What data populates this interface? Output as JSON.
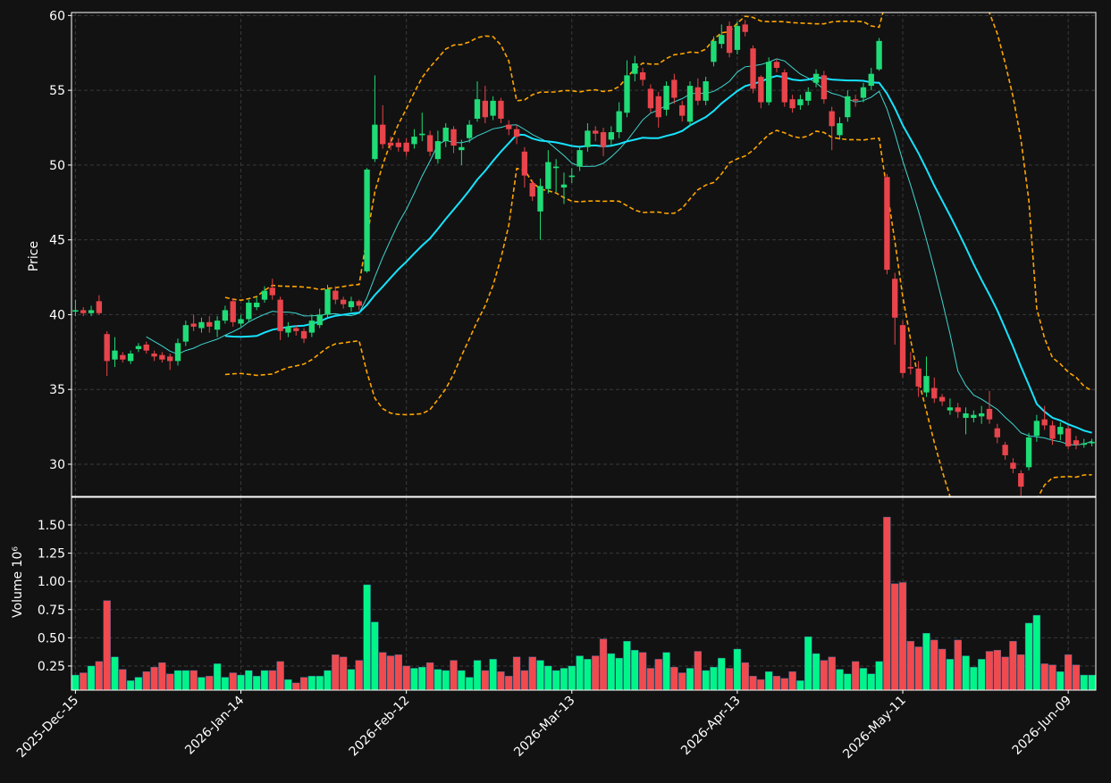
{
  "chart_data": {
    "type": "candlestick",
    "ylabel": "Price",
    "xlim": [
      -0.5,
      129.5
    ],
    "xticks": [
      {
        "value": 0,
        "label": "2025-Dec-15"
      },
      {
        "value": 21,
        "label": "2026-Jan-14"
      },
      {
        "value": 42,
        "label": "2026-Feb-12"
      },
      {
        "value": 63,
        "label": "2026-Mar-13"
      },
      {
        "value": 84,
        "label": "2026-Apr-13"
      },
      {
        "value": 105,
        "label": "2026-May-11"
      },
      {
        "value": 126,
        "label": "2026-Jun-09"
      }
    ],
    "ylim": [
      27.85,
      60.2
    ],
    "yticks": [
      30,
      35,
      40,
      45,
      50,
      55,
      60
    ],
    "grid": true,
    "up_color": "#1fdc77",
    "down_color": "#e8444b",
    "open": [
      40.2,
      40.3,
      40.1,
      40.9,
      38.7,
      37.0,
      37.3,
      36.9,
      37.7,
      38.0,
      37.4,
      37.3,
      37.2,
      36.9,
      38.2,
      39.4,
      39.1,
      39.5,
      39.0,
      39.6,
      40.9,
      39.4,
      39.7,
      40.5,
      41.0,
      41.8,
      41.0,
      38.8,
      39.1,
      38.9,
      38.8,
      39.3,
      40.0,
      41.6,
      41.0,
      40.5,
      40.9,
      42.9,
      50.4,
      52.7,
      51.5,
      51.5,
      51.5,
      51.4,
      52.0,
      52.0,
      50.4,
      51.6,
      52.4,
      51.0,
      51.8,
      53.1,
      54.3,
      53.3,
      54.3,
      52.7,
      52.4,
      50.9,
      48.8,
      46.9,
      48.4,
      49.8,
      48.5,
      49.2,
      49.9,
      51.2,
      52.3,
      52.2,
      51.7,
      52.2,
      53.5,
      56.1,
      56.2,
      55.1,
      54.6,
      53.7,
      55.7,
      54.0,
      52.9,
      55.2,
      54.3,
      56.9,
      58.1,
      59.3,
      57.7,
      59.4,
      57.8,
      55.9,
      54.2,
      56.9,
      56.2,
      54.4,
      54.0,
      54.3,
      55.5,
      56.0,
      53.6,
      52.0,
      53.2,
      54.4,
      54.5,
      55.3,
      56.4,
      49.2,
      42.4,
      39.3,
      36.5,
      36.4,
      34.8,
      35.1,
      34.5,
      33.6,
      33.8,
      33.1,
      33.1,
      33.2,
      33.7,
      32.4,
      31.3,
      30.1,
      29.4,
      29.8,
      31.9,
      33.0,
      32.6,
      32.0,
      32.4,
      31.6,
      31.3,
      31.4
    ],
    "high": [
      41.0,
      40.5,
      40.6,
      41.3,
      38.9,
      38.5,
      37.5,
      37.6,
      38.1,
      38.2,
      37.6,
      37.5,
      37.4,
      38.4,
      39.6,
      40.0,
      39.8,
      39.9,
      39.9,
      40.6,
      41.1,
      40.0,
      41.0,
      41.2,
      41.9,
      42.4,
      41.2,
      39.5,
      39.3,
      39.1,
      40.0,
      40.4,
      42.0,
      41.9,
      41.2,
      41.2,
      41.0,
      49.8,
      56.0,
      54.0,
      51.9,
      51.8,
      51.8,
      52.4,
      53.5,
      52.3,
      52.3,
      52.8,
      52.6,
      51.7,
      53.0,
      55.6,
      55.3,
      54.6,
      54.5,
      53.0,
      52.7,
      51.2,
      49.0,
      49.1,
      51.0,
      50.4,
      49.5,
      49.8,
      51.3,
      52.8,
      52.6,
      52.5,
      52.6,
      54.2,
      57.0,
      57.3,
      56.5,
      55.4,
      54.9,
      55.6,
      56.1,
      54.3,
      55.6,
      55.8,
      55.9,
      58.6,
      59.4,
      59.6,
      59.6,
      59.7,
      58.0,
      56.0,
      57.2,
      57.1,
      56.4,
      54.7,
      54.7,
      55.2,
      56.4,
      56.3,
      53.9,
      53.2,
      55.0,
      54.7,
      55.5,
      56.5,
      58.5,
      49.4,
      42.8,
      39.6,
      37.5,
      36.9,
      37.2,
      35.8,
      34.7,
      34.4,
      34.1,
      33.8,
      33.6,
      33.9,
      34.9,
      32.7,
      31.5,
      30.4,
      29.6,
      32.1,
      33.3,
      33.9,
      32.9,
      32.8,
      32.6,
      31.9,
      31.7,
      31.7
    ],
    "low": [
      39.9,
      39.9,
      39.9,
      40.0,
      35.9,
      36.5,
      36.8,
      36.7,
      37.5,
      37.4,
      36.9,
      36.8,
      36.3,
      36.6,
      37.9,
      38.9,
      38.8,
      38.8,
      38.5,
      39.4,
      39.2,
      39.2,
      39.5,
      40.3,
      40.8,
      41.0,
      38.3,
      38.5,
      38.6,
      38.1,
      38.5,
      39.1,
      39.8,
      40.7,
      40.4,
      40.2,
      40.3,
      42.8,
      50.2,
      51.1,
      51.0,
      50.9,
      50.6,
      51.1,
      51.6,
      50.6,
      50.1,
      51.2,
      50.8,
      50.0,
      51.5,
      52.9,
      52.8,
      53.0,
      52.8,
      52.0,
      51.4,
      48.5,
      47.6,
      45.0,
      48.1,
      48.2,
      47.4,
      48.8,
      49.6,
      50.9,
      51.6,
      50.6,
      51.3,
      51.8,
      53.2,
      55.6,
      55.3,
      53.5,
      52.5,
      53.3,
      54.1,
      52.9,
      52.6,
      54.0,
      54.0,
      56.6,
      57.8,
      57.2,
      57.4,
      58.6,
      54.8,
      53.8,
      54.0,
      56.2,
      53.9,
      53.5,
      53.7,
      54.0,
      55.2,
      54.1,
      51.0,
      51.7,
      52.9,
      53.9,
      54.2,
      55.0,
      56.3,
      42.7,
      38.0,
      35.8,
      36.0,
      34.5,
      34.5,
      34.1,
      33.9,
      33.3,
      33.1,
      32.0,
      32.8,
      32.7,
      32.7,
      31.4,
      30.3,
      29.4,
      27.9,
      29.6,
      31.5,
      32.3,
      31.3,
      31.6,
      31.0,
      31.0,
      31.1,
      31.2
    ],
    "close": [
      40.3,
      40.1,
      40.3,
      40.1,
      36.9,
      37.6,
      37.0,
      37.4,
      37.9,
      37.6,
      37.2,
      37.0,
      36.9,
      38.1,
      39.3,
      39.2,
      39.5,
      39.2,
      39.6,
      40.3,
      39.5,
      39.7,
      40.8,
      40.8,
      41.6,
      41.3,
      38.9,
      39.2,
      38.9,
      38.4,
      39.6,
      40.0,
      41.7,
      41.0,
      40.7,
      40.9,
      40.6,
      49.7,
      52.7,
      51.4,
      51.3,
      51.2,
      50.9,
      51.9,
      52.1,
      50.9,
      51.6,
      52.5,
      51.3,
      51.2,
      52.7,
      54.4,
      53.2,
      54.3,
      53.1,
      52.4,
      51.9,
      49.3,
      47.9,
      48.6,
      50.2,
      49.9,
      48.7,
      49.3,
      51.0,
      52.3,
      52.1,
      51.2,
      52.2,
      53.6,
      56.0,
      56.8,
      55.7,
      53.8,
      53.2,
      55.3,
      54.5,
      53.3,
      55.3,
      54.3,
      55.6,
      58.3,
      58.7,
      57.5,
      59.3,
      58.9,
      55.1,
      54.2,
      56.9,
      56.5,
      54.2,
      53.8,
      54.4,
      54.9,
      56.1,
      54.4,
      52.6,
      52.8,
      54.6,
      54.3,
      55.2,
      56.1,
      58.3,
      43.0,
      39.8,
      36.1,
      36.4,
      35.2,
      35.9,
      34.4,
      34.2,
      33.8,
      33.5,
      33.4,
      33.3,
      33.4,
      33.0,
      31.8,
      30.6,
      29.7,
      28.5,
      31.8,
      32.9,
      32.6,
      31.7,
      32.5,
      31.2,
      31.3,
      31.4,
      31.5
    ],
    "moving_averages": [
      {
        "window": 10,
        "color": "#3fd6d0",
        "width": 1
      },
      {
        "window": 20,
        "color": "#16e3ff",
        "width": 2
      }
    ],
    "bollinger": {
      "window": 20,
      "k": 2,
      "color": "#ffa500"
    },
    "volume": {
      "ylabel": "Volume  10⁶",
      "ylim": [
        0.036,
        1.745
      ],
      "yticks": [
        0.25,
        {
          "value": 0.5,
          "label": "0.50"
        },
        {
          "value": 0.75,
          "label": "0.75"
        },
        {
          "value": 1,
          "label": "1.00"
        },
        1.25,
        {
          "value": 1.5,
          "label": "1.50"
        }
      ],
      "up_color": "#00f589",
      "down_color": "#f04a4f",
      "values": [
        0.17,
        0.19,
        0.25,
        0.29,
        0.83,
        0.33,
        0.22,
        0.12,
        0.15,
        0.2,
        0.24,
        0.28,
        0.18,
        0.21,
        0.21,
        0.21,
        0.15,
        0.16,
        0.27,
        0.15,
        0.19,
        0.17,
        0.21,
        0.16,
        0.21,
        0.21,
        0.29,
        0.13,
        0.1,
        0.15,
        0.16,
        0.16,
        0.21,
        0.35,
        0.33,
        0.22,
        0.3,
        0.97,
        0.64,
        0.37,
        0.34,
        0.35,
        0.25,
        0.23,
        0.24,
        0.28,
        0.22,
        0.21,
        0.3,
        0.21,
        0.15,
        0.3,
        0.21,
        0.31,
        0.2,
        0.16,
        0.33,
        0.21,
        0.33,
        0.3,
        0.25,
        0.21,
        0.23,
        0.25,
        0.34,
        0.31,
        0.34,
        0.49,
        0.36,
        0.32,
        0.47,
        0.39,
        0.37,
        0.23,
        0.31,
        0.37,
        0.24,
        0.19,
        0.23,
        0.38,
        0.21,
        0.24,
        0.32,
        0.23,
        0.4,
        0.28,
        0.16,
        0.13,
        0.2,
        0.16,
        0.14,
        0.2,
        0.12,
        0.51,
        0.36,
        0.3,
        0.33,
        0.22,
        0.18,
        0.29,
        0.23,
        0.18,
        0.29,
        1.57,
        0.98,
        0.99,
        0.47,
        0.42,
        0.54,
        0.48,
        0.4,
        0.31,
        0.48,
        0.34,
        0.24,
        0.31,
        0.38,
        0.39,
        0.33,
        0.47,
        0.35,
        0.63,
        0.7,
        0.27,
        0.26,
        0.2,
        0.35,
        0.26,
        0.17,
        0.17
      ]
    }
  }
}
